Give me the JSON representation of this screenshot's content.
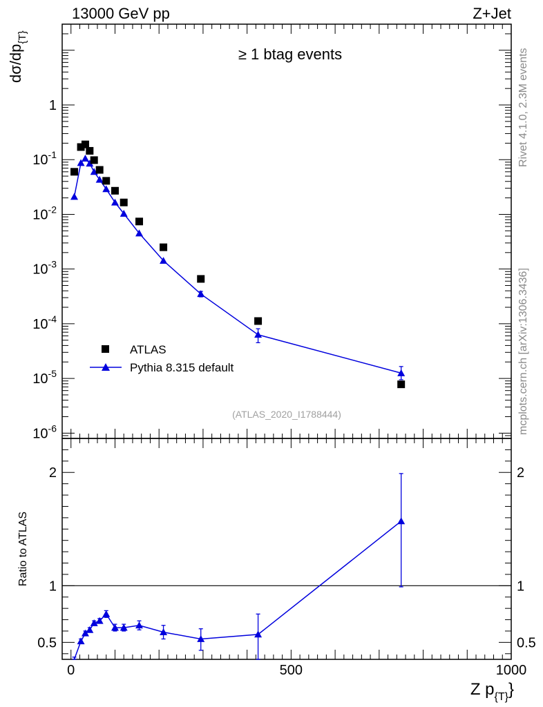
{
  "header": {
    "left": "13000 GeV pp",
    "right": "Z+Jet"
  },
  "side_labels": {
    "rivet": "Rivet 4.1.0,  2.3M events",
    "mcplots": "mcplots.cern.ch [arXiv:1306.3436]"
  },
  "colors": {
    "data": "#000000",
    "mc": "#0000dd",
    "side_text": "#8a8a8a",
    "analysis_text": "#a0a0a0"
  },
  "chart_data": [
    {
      "type": "scatter",
      "panel": "main",
      "title": "≥ 1 btag events",
      "analysis_id": "(ATLAS_2020_I1788444)",
      "ylabel": "dσ/dp_{T}",
      "xlabel": "",
      "y_scale": "log",
      "xlim": [
        -20,
        1000
      ],
      "ylim": [
        8e-07,
        30
      ],
      "y_tick_labels": [
        "10^{-6}",
        "10^{-5}",
        "10^{-4}",
        "10^{-3}",
        "10^{-2}",
        "10^{-1}",
        "1"
      ],
      "legend_position": "bottom-left",
      "series": [
        {
          "name": "ATLAS",
          "marker": "square",
          "x": [
            7.5,
            22.5,
            32.5,
            42.5,
            52.5,
            65,
            80,
            100,
            120,
            155,
            210,
            295,
            425,
            750
          ],
          "y": [
            0.06,
            0.17,
            0.19,
            0.145,
            0.098,
            0.065,
            0.041,
            0.027,
            0.0165,
            0.0074,
            0.0025,
            0.00066,
            0.000112,
            7.8e-06
          ]
        },
        {
          "name": "Pythia 8.315 default",
          "marker": "triangle",
          "x": [
            7.5,
            22.5,
            32.5,
            42.5,
            52.5,
            65,
            80,
            100,
            120,
            155,
            210,
            295,
            425,
            750
          ],
          "y": [
            0.021,
            0.087,
            0.105,
            0.085,
            0.06,
            0.043,
            0.029,
            0.0165,
            0.0103,
            0.0045,
            0.00142,
            0.00035,
            6.3e-05,
            1.25e-05
          ],
          "y_err_low": [
            0.001,
            0.003,
            0.003,
            0.002,
            0.002,
            0.0015,
            0.0011,
            0.0007,
            0.0004,
            0.00025,
            0.00011,
            4e-05,
            1.8e-05,
            3e-06
          ],
          "y_err_high": [
            0.001,
            0.003,
            0.003,
            0.002,
            0.002,
            0.0015,
            0.0011,
            0.0007,
            0.0004,
            0.00025,
            0.00011,
            4e-05,
            1.8e-05,
            4e-06
          ]
        }
      ]
    },
    {
      "type": "line",
      "panel": "ratio",
      "ylabel": "Ratio to ATLAS",
      "xlabel": "Z p_{T}",
      "xlim": [
        -20,
        1000
      ],
      "ylim": [
        0.35,
        2.3
      ],
      "x_tick_labels": [
        "0",
        "500",
        "1000"
      ],
      "y_tick_labels": [
        "0.5",
        "1",
        "2"
      ],
      "reference_line": 1,
      "series": [
        {
          "name": "Pythia 8.315 default / ATLAS",
          "marker": "triangle",
          "x": [
            7.5,
            22.5,
            32.5,
            42.5,
            52.5,
            65,
            80,
            100,
            120,
            155,
            210,
            295,
            425,
            750
          ],
          "y": [
            0.35,
            0.51,
            0.58,
            0.61,
            0.67,
            0.69,
            0.75,
            0.63,
            0.63,
            0.65,
            0.59,
            0.53,
            0.57,
            1.57
          ],
          "y_err_low": [
            0.02,
            0.02,
            0.02,
            0.02,
            0.02,
            0.02,
            0.03,
            0.03,
            0.03,
            0.04,
            0.06,
            0.1,
            0.25,
            0.58
          ],
          "y_err_high": [
            0.02,
            0.02,
            0.02,
            0.02,
            0.02,
            0.02,
            0.03,
            0.03,
            0.03,
            0.04,
            0.06,
            0.09,
            0.18,
            0.42
          ]
        }
      ]
    }
  ]
}
